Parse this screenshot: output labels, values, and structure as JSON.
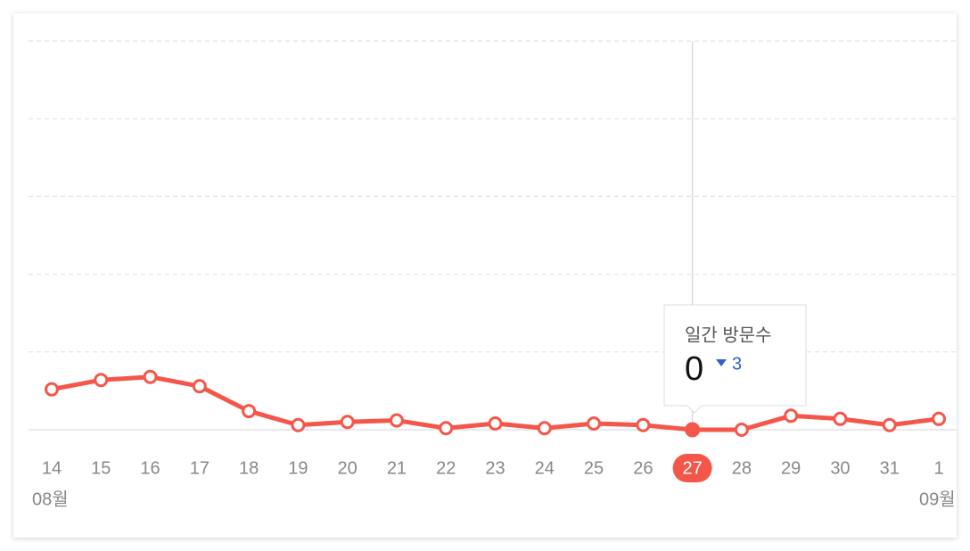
{
  "chart_data": {
    "type": "line",
    "categories": [
      "14",
      "15",
      "16",
      "17",
      "18",
      "19",
      "20",
      "21",
      "22",
      "23",
      "24",
      "25",
      "26",
      "27",
      "28",
      "29",
      "30",
      "31",
      "1"
    ],
    "values": [
      26,
      32,
      34,
      28,
      12,
      3,
      5,
      6,
      1,
      4,
      1,
      4,
      3,
      0,
      0,
      9,
      7,
      3,
      7
    ],
    "color": "#f4574a",
    "ylim": [
      0,
      250
    ],
    "yticks": [
      0,
      50,
      100,
      150,
      200,
      250
    ],
    "grid": true,
    "month_labels": [
      {
        "index": 0,
        "label": "08월"
      },
      {
        "index": 18,
        "label": "09월"
      }
    ],
    "highlight_index": 13,
    "tooltip": {
      "label": "일간 방문수",
      "change": 3
    }
  }
}
